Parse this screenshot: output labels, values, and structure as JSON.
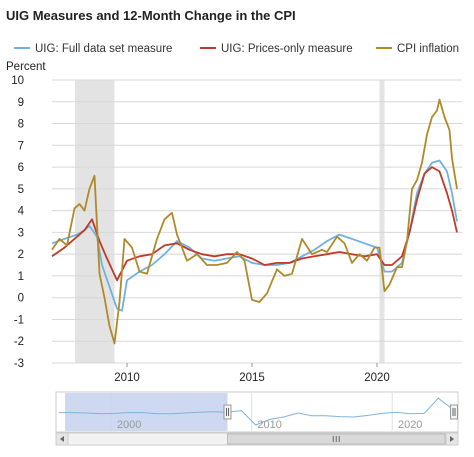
{
  "chart_data": {
    "type": "line",
    "title": "UIG Measures and 12-Month Change in the CPI",
    "ylabel": "Percent",
    "ylim": [
      -3,
      10
    ],
    "yticks": [
      "10",
      "9",
      "8",
      "7",
      "6",
      "5",
      "4",
      "3",
      "2",
      "1",
      "0",
      "-1",
      "-2",
      "-3"
    ],
    "xlim": [
      2007.0,
      2023.4
    ],
    "xticks": [
      "2010",
      "2015",
      "2020"
    ],
    "legend_position": "top",
    "grid": "horizontal",
    "recessions": [
      [
        2007.92,
        2009.5
      ],
      [
        2020.1,
        2020.3
      ]
    ],
    "series": [
      {
        "name": "UIG: Full data set measure",
        "color": "#6fb2e0",
        "x": [
          2007.0,
          2007.5,
          2008.0,
          2008.3,
          2008.5,
          2008.8,
          2009.0,
          2009.3,
          2009.6,
          2009.8,
          2010.0,
          2010.5,
          2011.0,
          2011.5,
          2012.0,
          2012.5,
          2013.0,
          2013.5,
          2014.0,
          2014.5,
          2015.0,
          2015.5,
          2016.0,
          2016.5,
          2017.0,
          2017.5,
          2018.0,
          2018.5,
          2019.0,
          2019.5,
          2020.0,
          2020.3,
          2020.6,
          2021.0,
          2021.3,
          2021.6,
          2021.9,
          2022.2,
          2022.5,
          2022.8,
          2023.0,
          2023.2
        ],
        "y": [
          2.5,
          2.7,
          2.9,
          3.1,
          3.3,
          2.8,
          1.5,
          0.5,
          -0.5,
          -0.6,
          0.8,
          1.2,
          1.5,
          2.0,
          2.6,
          2.3,
          1.8,
          1.7,
          1.8,
          1.9,
          1.6,
          1.5,
          1.5,
          1.6,
          1.9,
          2.2,
          2.6,
          2.9,
          2.7,
          2.5,
          2.3,
          1.2,
          1.2,
          1.6,
          3.0,
          4.8,
          5.7,
          6.2,
          6.3,
          5.8,
          4.8,
          3.5
        ]
      },
      {
        "name": "UIG: Prices-only measure",
        "color": "#c0392b",
        "x": [
          2007.0,
          2007.5,
          2008.0,
          2008.3,
          2008.6,
          2008.9,
          2009.2,
          2009.6,
          2010.0,
          2010.5,
          2011.0,
          2011.5,
          2012.0,
          2012.5,
          2013.0,
          2013.5,
          2014.0,
          2014.5,
          2015.0,
          2015.5,
          2016.0,
          2016.5,
          2017.0,
          2017.5,
          2018.0,
          2018.5,
          2019.0,
          2019.5,
          2020.0,
          2020.3,
          2020.6,
          2021.0,
          2021.3,
          2021.6,
          2021.9,
          2022.2,
          2022.5,
          2022.8,
          2023.0,
          2023.2
        ],
        "y": [
          1.9,
          2.3,
          2.8,
          3.1,
          3.6,
          2.6,
          1.8,
          0.8,
          1.7,
          1.9,
          2.0,
          2.4,
          2.5,
          2.2,
          2.0,
          1.9,
          2.0,
          2.0,
          1.8,
          1.5,
          1.6,
          1.6,
          1.8,
          1.9,
          2.0,
          2.1,
          2.0,
          1.9,
          2.0,
          1.5,
          1.5,
          1.9,
          3.0,
          4.5,
          5.7,
          6.0,
          5.8,
          4.8,
          4.0,
          3.0
        ]
      },
      {
        "name": "CPI inflation",
        "color": "#b08a2a",
        "x": [
          2007.0,
          2007.3,
          2007.6,
          2007.9,
          2008.1,
          2008.3,
          2008.5,
          2008.7,
          2008.9,
          2009.1,
          2009.3,
          2009.5,
          2009.7,
          2009.9,
          2010.2,
          2010.5,
          2010.8,
          2011.2,
          2011.5,
          2011.8,
          2012.0,
          2012.4,
          2012.8,
          2013.2,
          2013.6,
          2014.0,
          2014.4,
          2014.7,
          2015.0,
          2015.3,
          2015.6,
          2016.0,
          2016.3,
          2016.6,
          2017.0,
          2017.4,
          2017.8,
          2018.0,
          2018.4,
          2018.7,
          2019.0,
          2019.3,
          2019.6,
          2019.9,
          2020.1,
          2020.3,
          2020.5,
          2020.8,
          2021.0,
          2021.2,
          2021.4,
          2021.6,
          2021.8,
          2022.0,
          2022.2,
          2022.4,
          2022.5,
          2022.7,
          2022.9,
          2023.0,
          2023.2
        ],
        "y": [
          2.2,
          2.7,
          2.4,
          4.1,
          4.3,
          4.0,
          5.0,
          5.6,
          1.1,
          0.0,
          -1.3,
          -2.1,
          -0.2,
          2.7,
          2.3,
          1.2,
          1.1,
          2.7,
          3.6,
          3.9,
          2.9,
          1.7,
          2.0,
          1.5,
          1.5,
          1.6,
          2.1,
          1.7,
          -0.1,
          -0.2,
          0.2,
          1.3,
          1.0,
          1.1,
          2.7,
          2.0,
          2.2,
          2.1,
          2.8,
          2.5,
          1.6,
          2.0,
          1.7,
          2.3,
          2.3,
          0.3,
          0.6,
          1.4,
          1.4,
          2.6,
          5.0,
          5.4,
          6.2,
          7.5,
          8.3,
          8.6,
          9.1,
          8.3,
          7.7,
          6.4,
          5.0
        ]
      }
    ],
    "navigator": {
      "xticks": [
        "2000",
        "2010",
        "2020"
      ],
      "xlim": [
        1994.8,
        2023.4
      ],
      "selected_range": [
        2007.0,
        2023.4
      ],
      "history": {
        "x": [
          1995,
          1996,
          1997,
          1998,
          1999,
          2000,
          2001,
          2002,
          2003,
          2004,
          2005,
          2006,
          2007,
          2008,
          2009,
          2010,
          2011,
          2012,
          2013,
          2014,
          2015,
          2016,
          2017,
          2018,
          2019,
          2020,
          2021,
          2022,
          2023
        ],
        "y": [
          2.6,
          2.6,
          2.5,
          2.3,
          2.4,
          2.6,
          2.6,
          2.3,
          2.3,
          2.5,
          2.7,
          2.8,
          2.7,
          3.1,
          -0.5,
          0.9,
          1.5,
          2.5,
          1.8,
          1.8,
          1.6,
          1.5,
          1.9,
          2.4,
          2.7,
          2.3,
          2.4,
          6.2,
          3.5
        ]
      }
    }
  }
}
